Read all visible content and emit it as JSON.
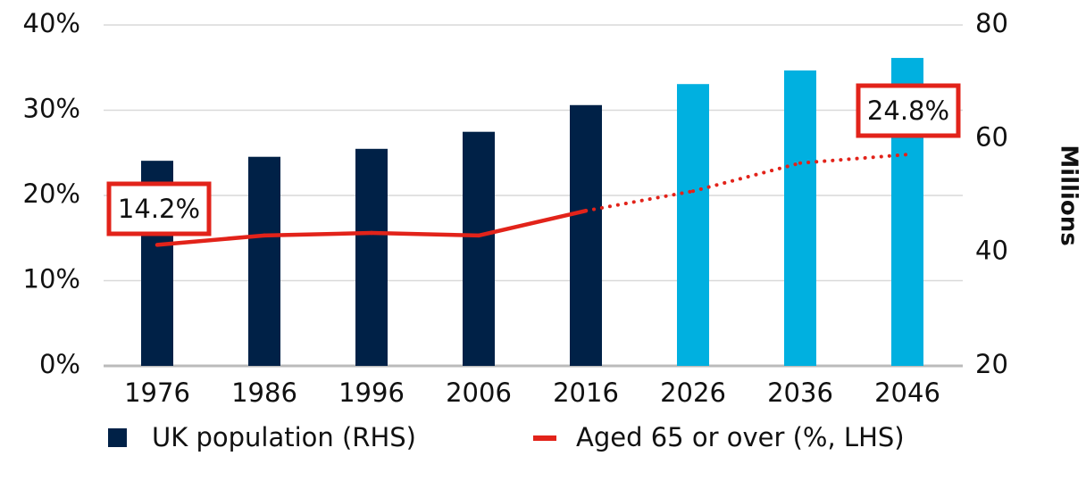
{
  "chart_data": {
    "type": "bar_line",
    "categories": [
      "1976",
      "1986",
      "1996",
      "2006",
      "2016",
      "2026",
      "2036",
      "2046"
    ],
    "series": [
      {
        "name": "UK population (RHS)",
        "type": "bar",
        "axis": "y2",
        "color": "#002147",
        "colors": [
          "#002147",
          "#002147",
          "#002147",
          "#002147",
          "#002147",
          "#00b0e0",
          "#00b0e0",
          "#00b0e0"
        ],
        "values": [
          56.1,
          56.8,
          58.2,
          61.2,
          65.9,
          69.6,
          72.0,
          74.2
        ]
      },
      {
        "name": "Aged 65 or over (%, LHS)",
        "type": "line",
        "axis": "y",
        "color": "#e2231a",
        "projected": [
          false,
          false,
          false,
          false,
          false,
          true,
          true,
          true
        ],
        "values": [
          14.2,
          15.3,
          15.6,
          15.3,
          18.2,
          20.5,
          23.8,
          24.8
        ],
        "value_labels": [
          "14.2%",
          null,
          null,
          null,
          null,
          null,
          null,
          "24.8%"
        ]
      }
    ],
    "ylim": [
      0,
      40
    ],
    "yticks": [
      {
        "value": 0,
        "label": "0%"
      },
      {
        "value": 10,
        "label": "10%"
      },
      {
        "value": 20,
        "label": "20%"
      },
      {
        "value": 30,
        "label": "30%"
      },
      {
        "value": 40,
        "label": "40%"
      }
    ],
    "y2lim": [
      20,
      80
    ],
    "y2ticks": [
      20,
      40,
      60,
      80
    ],
    "y2label": "Millions",
    "grid": true,
    "legend": "bottom"
  }
}
